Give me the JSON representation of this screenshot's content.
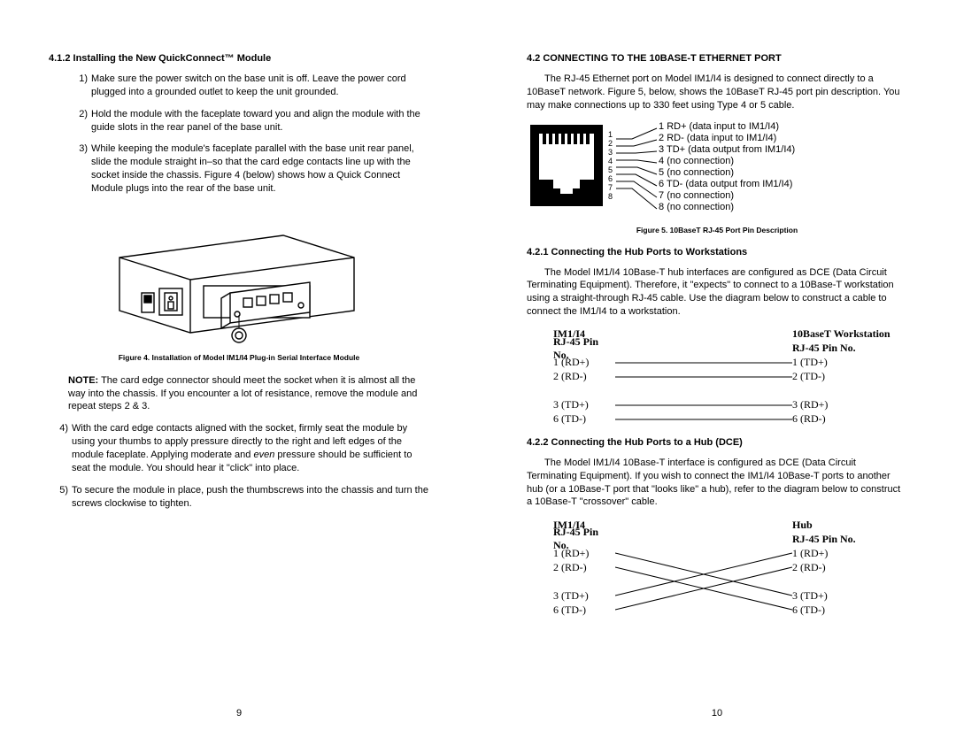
{
  "left": {
    "heading": "4.1.2  Installing the New QuickConnect™ Module",
    "items": [
      {
        "n": "1)",
        "t": "Make sure the power switch on the base unit is off.  Leave the power cord plugged into a grounded outlet to keep the unit grounded."
      },
      {
        "n": "2)",
        "t": "Hold the module with the faceplate toward you and align the module with the guide slots in the rear panel of the base unit."
      },
      {
        "n": "3)",
        "t": "While keeping the module's faceplate parallel with the base unit rear panel, slide the module straight in–so that the card edge contacts line up with the socket inside the chassis.  Figure 4 (below) shows how a Quick Connect Module plugs into the rear of the base unit."
      }
    ],
    "fig4_caption": "Figure 4. Installation of Model IM1/I4 Plug-in Serial Interface Module",
    "note_bold": "NOTE:",
    "note_text": "  The card edge connector should meet the socket when it is almost all the way into the chassis.  If you encounter a lot of resistance, remove the module and repeat steps 2 & 3.",
    "items2": [
      {
        "n": "4)",
        "t": "With the card edge contacts aligned with the socket, firmly seat the module by using your thumbs to apply pressure directly to the right and left edges of the module faceplate.  Applying moderate and ",
        "em": "even",
        "t2": " pressure should be sufficient to seat the module.  You should hear it \"click\" into place."
      },
      {
        "n": "5)",
        "t": "To secure the module in place, push the thumbscrews into the chassis and turn the screws clockwise to tighten."
      }
    ],
    "pagenum": "9"
  },
  "right": {
    "heading": "4.2  CONNECTING TO THE 10BASE-T ETHERNET PORT",
    "intro": "The RJ-45 Ethernet port on Model IM1/I4 is designed to connect directly to a 10BaseT network.  Figure 5, below, shows the 10BaseT RJ-45 port pin description.  You may make connections up to 330 feet using Type 4 or 5 cable.",
    "pins": [
      "1 RD+ (data input  to IM1/I4)",
      "2 RD- (data input to IM1/I4)",
      "3 TD+ (data output from IM1/I4)",
      "4 (no connection)",
      "5 (no connection)",
      "6 TD- (data output from IM1/I4)",
      "7 (no connection)",
      "8 (no connection)"
    ],
    "pin_nums": [
      "1",
      "2",
      "3",
      "4",
      "5",
      "6",
      "7",
      "8"
    ],
    "fig5_caption": "Figure 5. 10BaseT RJ-45 Port Pin Description",
    "h421": "4.2.1  Connecting the Hub Ports to Workstations",
    "p421": "The Model IM1/I4 10Base-T hub interfaces are configured as DCE (Data Circuit Terminating Equipment).  Therefore, it \"expects\" to connect to a 10Base-T workstation using a straight-through RJ-45 cable.  Use the diagram below to construct a cable to connect the IM1/I4 to a workstation.",
    "tbl1": {
      "left_h1": "IM1/I4",
      "left_h2": "RJ-45 Pin No.",
      "right_h1": "10BaseT Workstation",
      "right_h2": "RJ-45 Pin No.",
      "rows": [
        {
          "l": "1 (RD+)",
          "r": "1 (TD+)"
        },
        {
          "l": "2 (RD-)",
          "r": "2 (TD-)"
        },
        {
          "l": "",
          "r": ""
        },
        {
          "l": "3 (TD+)",
          "r": "3 (RD+)"
        },
        {
          "l": "6 (TD-)",
          "r": "6 (RD-)"
        }
      ],
      "line_width": 200
    },
    "h422": "4.2.2  Connecting the Hub Ports to a Hub (DCE)",
    "p422": "The Model IM1/I4 10Base-T interface is configured as DCE (Data Circuit Terminating Equipment).  If you wish to connect the IM1/I4 10Base-T ports to another hub (or a 10Base-T port that \"looks like\" a hub), refer to the diagram below to construct a 10Base-T \"crossover\" cable.",
    "tbl2": {
      "left_h1": "IM1/I4",
      "left_h2": "RJ-45 Pin No.",
      "right_h1": "Hub",
      "right_h2": "RJ-45 Pin No.",
      "rows": [
        {
          "l": "1 (RD+)",
          "r": "1 (RD+)"
        },
        {
          "l": "2 (RD-)",
          "r": "2 (RD-)"
        },
        {
          "l": "",
          "r": ""
        },
        {
          "l": "3 (TD+)",
          "r": "3 (TD+)"
        },
        {
          "l": "6 (TD-)",
          "r": "6 (TD-)"
        }
      ],
      "line_width": 200
    },
    "pagenum": "10"
  },
  "colors": {
    "text": "#000000",
    "bg": "#ffffff"
  }
}
